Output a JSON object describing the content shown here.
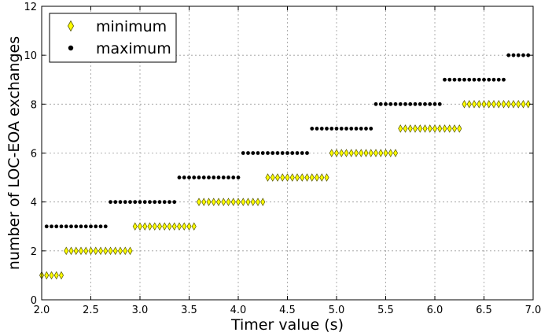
{
  "chart_data": {
    "type": "scatter",
    "xlabel": "Timer value (s)",
    "ylabel": "number of LOC-EOA exchanges",
    "xlim": [
      2.0,
      7.0
    ],
    "ylim": [
      0,
      12
    ],
    "x_ticks": [
      "2.0",
      "2.5",
      "3.0",
      "3.5",
      "4.0",
      "4.5",
      "5.0",
      "5.5",
      "6.0",
      "6.5",
      "7.0"
    ],
    "y_ticks": [
      "0",
      "2",
      "4",
      "6",
      "8",
      "10",
      "12"
    ],
    "grid": true,
    "legend_position": "top-left",
    "colors": {
      "minimum": "#ffff00",
      "minimum_edge": "#555500",
      "maximum": "#000000"
    },
    "series": [
      {
        "name": "minimum",
        "marker": "diamond",
        "segments": [
          {
            "y": 1,
            "x_start": 2.0,
            "x_end": 2.2
          },
          {
            "y": 2,
            "x_start": 2.25,
            "x_end": 2.9
          },
          {
            "y": 3,
            "x_start": 2.95,
            "x_end": 3.55
          },
          {
            "y": 4,
            "x_start": 3.6,
            "x_end": 4.25
          },
          {
            "y": 5,
            "x_start": 4.3,
            "x_end": 4.9
          },
          {
            "y": 6,
            "x_start": 4.95,
            "x_end": 5.6
          },
          {
            "y": 7,
            "x_start": 5.65,
            "x_end": 6.25
          },
          {
            "y": 8,
            "x_start": 6.3,
            "x_end": 6.95
          }
        ]
      },
      {
        "name": "maximum",
        "marker": "circle",
        "segments": [
          {
            "y": 3,
            "x_start": 2.05,
            "x_end": 2.65
          },
          {
            "y": 4,
            "x_start": 2.7,
            "x_end": 3.35
          },
          {
            "y": 5,
            "x_start": 3.4,
            "x_end": 4.0
          },
          {
            "y": 6,
            "x_start": 4.05,
            "x_end": 4.7
          },
          {
            "y": 7,
            "x_start": 4.75,
            "x_end": 5.35
          },
          {
            "y": 8,
            "x_start": 5.4,
            "x_end": 6.05
          },
          {
            "y": 9,
            "x_start": 6.1,
            "x_end": 6.7
          },
          {
            "y": 10,
            "x_start": 6.75,
            "x_end": 6.95
          }
        ]
      }
    ],
    "x_step": 0.05
  }
}
